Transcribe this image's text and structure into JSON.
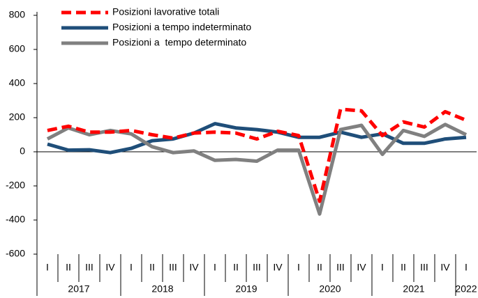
{
  "chart_data": {
    "type": "line",
    "categories": [
      "I",
      "II",
      "III",
      "IV",
      "I",
      "II",
      "III",
      "IV",
      "I",
      "II",
      "III",
      "IV",
      "I",
      "II",
      "III",
      "IV",
      "I",
      "II",
      "III",
      "IV",
      "I"
    ],
    "years": [
      "2017",
      "2018",
      "2019",
      "2020",
      "2021",
      "2022"
    ],
    "ylim": [
      -600,
      800
    ],
    "yticks": [
      -600,
      -400,
      -200,
      0,
      200,
      400,
      600,
      800
    ],
    "series": [
      {
        "name": "Posizioni lavorative totali",
        "color": "#ff0000",
        "dashed": true,
        "values": [
          125,
          150,
          115,
          115,
          125,
          100,
          80,
          110,
          115,
          110,
          75,
          120,
          95,
          -290,
          250,
          240,
          95,
          175,
          145,
          235,
          185
        ]
      },
      {
        "name": "Posizioni a tempo indeterminato",
        "color": "#1f4e79",
        "values": [
          45,
          10,
          12,
          -5,
          20,
          65,
          75,
          110,
          165,
          140,
          130,
          115,
          85,
          85,
          115,
          85,
          105,
          50,
          50,
          75,
          85
        ]
      },
      {
        "name": "Posizioni a  tempo determinato",
        "color": "#808080",
        "values": [
          75,
          140,
          100,
          125,
          105,
          30,
          -5,
          5,
          -50,
          -45,
          -55,
          10,
          10,
          -365,
          130,
          155,
          -15,
          125,
          90,
          160,
          100
        ]
      }
    ]
  }
}
